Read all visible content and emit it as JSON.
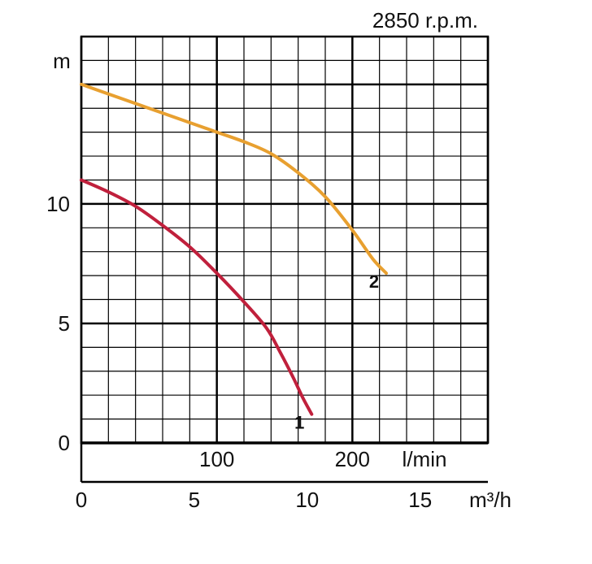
{
  "chart_data": {
    "type": "line",
    "title": "2850 r.p.m.",
    "ylabel": "m",
    "xlabel_lmin": "l/min",
    "xlabel_m3h": "m³/h",
    "ylim": [
      0,
      17
    ],
    "xlim_m3h": [
      0,
      18
    ],
    "y_ticks": [
      {
        "value": 0,
        "label": "0"
      },
      {
        "value": 5,
        "label": "5"
      },
      {
        "value": 10,
        "label": "10"
      }
    ],
    "x_ticks_lmin": [
      {
        "value": 100,
        "label": "100"
      },
      {
        "value": 200,
        "label": "200"
      }
    ],
    "x_ticks_m3h": [
      {
        "value": 0,
        "label": "0"
      },
      {
        "value": 5,
        "label": "5"
      },
      {
        "value": 10,
        "label": "10"
      },
      {
        "value": 15,
        "label": "15"
      }
    ],
    "grid": true,
    "colors": {
      "series_1": "#c0203c",
      "series_2": "#e8a030",
      "grid": "#000000"
    },
    "series": [
      {
        "name": "1",
        "x_m3h": [
          0,
          1.2,
          2.4,
          3.6,
          4.8,
          6.0,
          7.2,
          8.2,
          8.8,
          9.4,
          9.8,
          10.2
        ],
        "y_m": [
          11.0,
          10.5,
          9.9,
          9.1,
          8.2,
          7.1,
          5.9,
          4.8,
          3.8,
          2.7,
          1.9,
          1.2
        ]
      },
      {
        "name": "2",
        "x_m3h": [
          0,
          1.2,
          2.4,
          3.6,
          4.8,
          6.0,
          7.2,
          8.4,
          9.6,
          10.8,
          12.0,
          12.9,
          13.5
        ],
        "y_m": [
          15.0,
          14.6,
          14.2,
          13.8,
          13.4,
          13.0,
          12.6,
          12.1,
          11.3,
          10.3,
          8.9,
          7.7,
          7.1
        ]
      }
    ]
  }
}
